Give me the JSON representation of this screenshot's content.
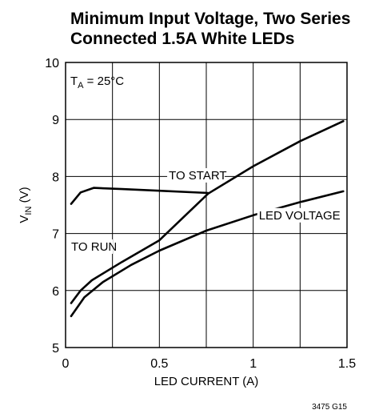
{
  "chart_data": {
    "type": "line",
    "title_lines": [
      "Minimum Input Voltage, Two Series",
      "Connected 1.5A White LEDs"
    ],
    "xlabel": "LED CURRENT (A)",
    "ylabel": {
      "main": "V",
      "sub": "IN",
      "unit": " (V)"
    },
    "xlim": [
      0,
      1.5
    ],
    "ylim": [
      5,
      10
    ],
    "grid": true,
    "x_ticks": [
      {
        "v": 0,
        "label": "0"
      },
      {
        "v": 0.5,
        "label": "0.5"
      },
      {
        "v": 1,
        "label": "1"
      },
      {
        "v": 1.5,
        "label": "1.5"
      }
    ],
    "y_ticks": [
      {
        "v": 5,
        "label": "5"
      },
      {
        "v": 6,
        "label": "6"
      },
      {
        "v": 7,
        "label": "7"
      },
      {
        "v": 8,
        "label": "8"
      },
      {
        "v": 9,
        "label": "9"
      },
      {
        "v": 10,
        "label": "10"
      }
    ],
    "x_minor_gridlines": [
      0.25,
      0.75,
      1.25
    ],
    "condition": {
      "main": "T",
      "sub": "A",
      "rest": " = 25°C"
    },
    "series": [
      {
        "name": "TO START",
        "x": [
          0.03,
          0.08,
          0.15,
          0.3,
          0.5,
          0.76
        ],
        "y": [
          7.52,
          7.72,
          7.8,
          7.78,
          7.75,
          7.71
        ]
      },
      {
        "name": "TO RUN",
        "x": [
          0.03,
          0.08,
          0.14,
          0.3,
          0.5,
          0.76,
          1.0,
          1.25,
          1.48
        ],
        "y": [
          5.78,
          6.0,
          6.18,
          6.5,
          6.88,
          7.7,
          8.18,
          8.62,
          8.97
        ]
      },
      {
        "name": "LED VOLTAGE",
        "x": [
          0.03,
          0.1,
          0.2,
          0.35,
          0.5,
          0.75,
          1.0,
          1.25,
          1.48
        ],
        "y": [
          5.55,
          5.88,
          6.15,
          6.45,
          6.7,
          7.05,
          7.32,
          7.55,
          7.74
        ]
      }
    ],
    "annotations": [
      {
        "text": "TO START",
        "target": "TO START",
        "x": 0.55,
        "y": 7.95
      },
      {
        "text": "TO RUN",
        "target": "TO RUN",
        "x": 0.03,
        "y": 6.7
      },
      {
        "text": "LED VOLTAGE",
        "target": "LED VOLTAGE",
        "x": 1.03,
        "y": 7.25
      }
    ],
    "figure_code": "3475 G15"
  }
}
